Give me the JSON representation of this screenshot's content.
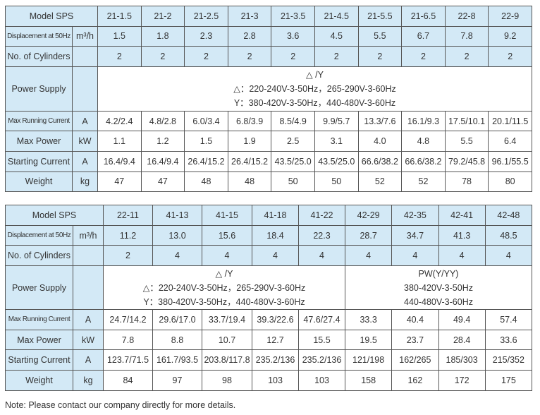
{
  "labels": {
    "model": "Model SPS",
    "displacement": "Displacement at 50Hz",
    "displacement_unit": "m³/h",
    "cylinders": "No. of Cylinders",
    "power_supply": "Power Supply",
    "max_running_current": "Max Running Current",
    "max_running_current_unit": "A",
    "max_power": "Max Power",
    "max_power_unit": "kW",
    "starting_current": "Starting Current",
    "starting_current_unit": "A",
    "weight": "Weight",
    "weight_unit": "kg"
  },
  "table1": {
    "models": [
      "21-1.5",
      "21-2",
      "21-2.5",
      "21-3",
      "21-3.5",
      "21-4.5",
      "21-5.5",
      "21-6.5",
      "22-8",
      "22-9"
    ],
    "displacement": [
      "1.5",
      "1.8",
      "2.3",
      "2.8",
      "3.6",
      "4.5",
      "5.5",
      "6.7",
      "7.8",
      "9.2"
    ],
    "cylinders": [
      "2",
      "2",
      "2",
      "2",
      "2",
      "2",
      "2",
      "2",
      "2",
      "2"
    ],
    "power_supply": [
      "△ /Y",
      "△：220-240V-3-50Hz，265-290V-3-60Hz",
      "Y：380-420V-3-50Hz，440-480V-3-60Hz"
    ],
    "max_running_current": [
      "4.2/2.4",
      "4.8/2.8",
      "6.0/3.4",
      "6.8/3.9",
      "8.5/4.9",
      "9.9/5.7",
      "13.3/7.6",
      "16.1/9.3",
      "17.5/10.1",
      "20.1/11.5"
    ],
    "max_power": [
      "1.1",
      "1.2",
      "1.5",
      "1.9",
      "2.5",
      "3.1",
      "4.0",
      "4.8",
      "5.5",
      "6.4"
    ],
    "starting_current": [
      "16.4/9.4",
      "16.4/9.4",
      "26.4/15.2",
      "26.4/15.2",
      "43.5/25.0",
      "43.5/25.0",
      "66.6/38.2",
      "66.6/38.2",
      "79.2/45.8",
      "96.1/55.5"
    ],
    "weight": [
      "47",
      "47",
      "48",
      "48",
      "50",
      "50",
      "52",
      "52",
      "78",
      "80"
    ]
  },
  "table2": {
    "models": [
      "22-11",
      "41-13",
      "41-15",
      "41-18",
      "41-22",
      "42-29",
      "42-35",
      "42-41",
      "42-48"
    ],
    "displacement": [
      "11.2",
      "13.0",
      "15.6",
      "18.4",
      "22.3",
      "28.7",
      "34.7",
      "41.3",
      "48.5"
    ],
    "cylinders": [
      "2",
      "4",
      "4",
      "4",
      "4",
      "4",
      "4",
      "4",
      "4"
    ],
    "power_supply_a": [
      "△ /Y",
      "△：220-240V-3-50Hz，265-290V-3-60Hz",
      "Y：380-420V-3-50Hz，440-480V-3-60Hz"
    ],
    "power_supply_b": [
      "PW(Y/YY)",
      "380-420V-3-50Hz",
      "440-480V-3-60Hz"
    ],
    "max_running_current": [
      "24.7/14.2",
      "29.6/17.0",
      "33.7/19.4",
      "39.3/22.6",
      "47.6/27.4",
      "33.3",
      "40.4",
      "49.4",
      "57.4"
    ],
    "max_power": [
      "7.8",
      "8.8",
      "10.7",
      "12.7",
      "15.5",
      "19.5",
      "23.7",
      "28.4",
      "33.6"
    ],
    "starting_current": [
      "123.7/71.5",
      "161.7/93.5",
      "203.8/117.8",
      "235.2/136",
      "235.2/136",
      "121/198",
      "162/265",
      "185/303",
      "215/352"
    ],
    "weight": [
      "84",
      "97",
      "98",
      "103",
      "103",
      "158",
      "162",
      "172",
      "175"
    ]
  },
  "note": "Note: Please contact our company directly for more details.",
  "colors": {
    "header_bg": "#d3e9f6",
    "border": "#555555"
  }
}
